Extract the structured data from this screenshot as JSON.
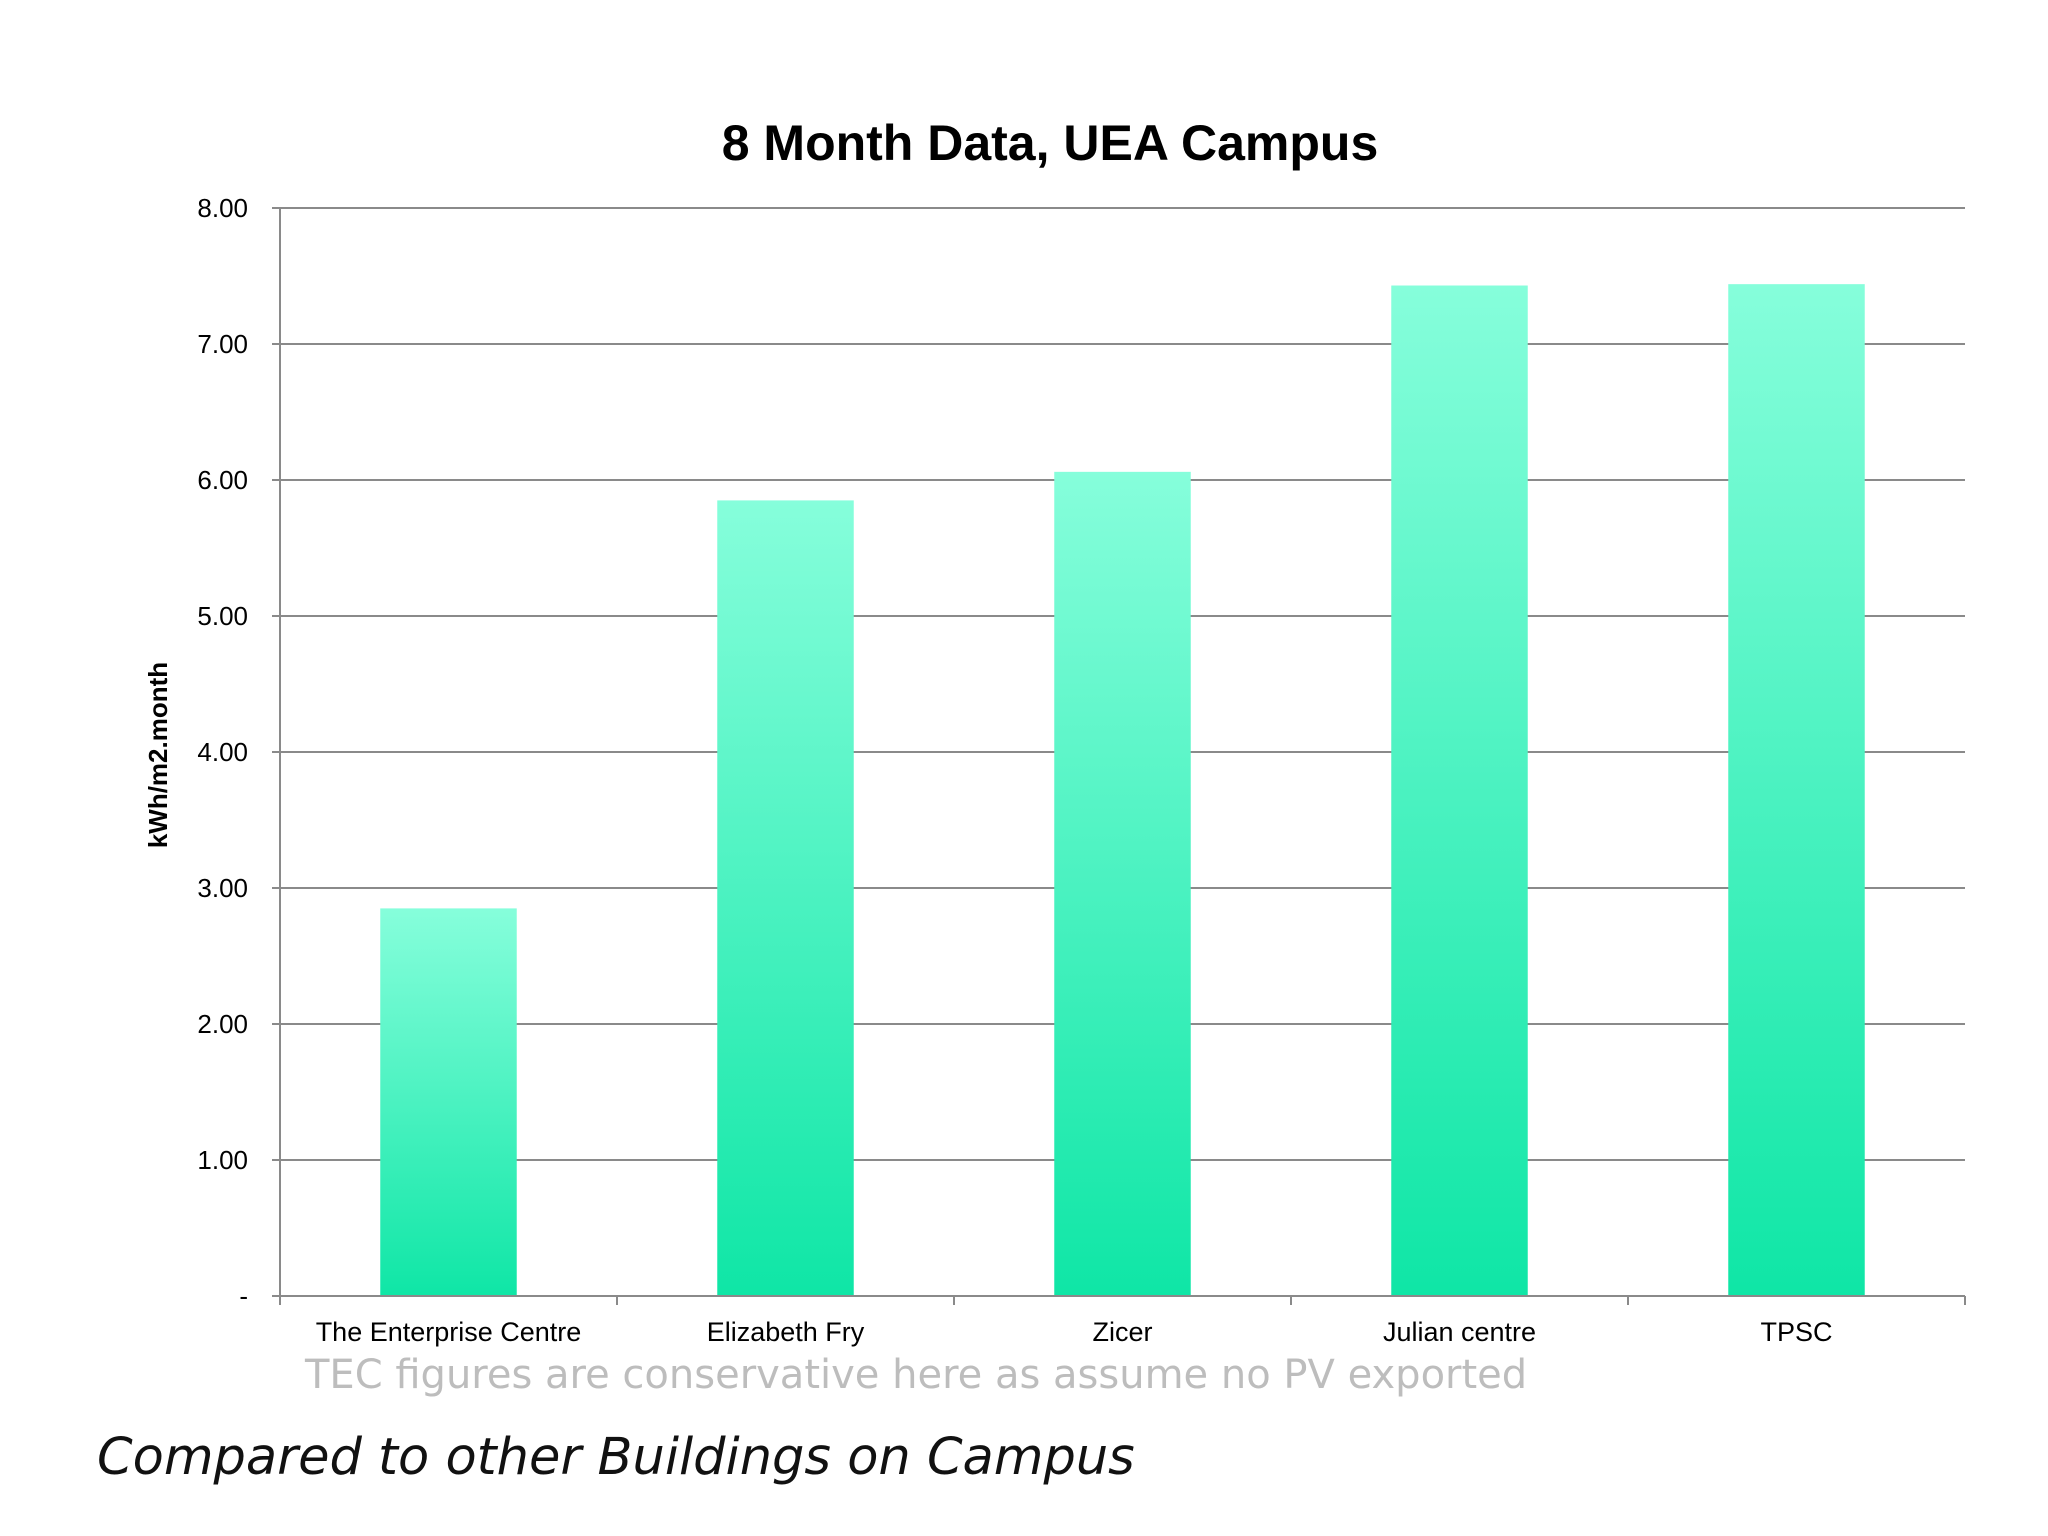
{
  "chart_data": {
    "type": "bar",
    "title": "8 Month Data, UEA Campus",
    "ylabel": "kWh/m2.month",
    "xlabel": "",
    "categories": [
      "The Enterprise Centre",
      "Elizabeth Fry",
      "Zicer",
      "Julian centre",
      "TPSC"
    ],
    "values": [
      2.85,
      5.85,
      6.06,
      7.43,
      7.44
    ],
    "ylim": [
      0,
      8
    ],
    "yticks": [
      0,
      1,
      2,
      3,
      4,
      5,
      6,
      7,
      8
    ],
    "ytick_labels": [
      "-",
      "1.00",
      "2.00",
      "3.00",
      "4.00",
      "5.00",
      "6.00",
      "7.00",
      "8.00"
    ],
    "grid": true,
    "legend": "none",
    "bar_color_top": "#86fedb",
    "bar_color_bottom": "#0fe6a6"
  },
  "note": "TEC figures are conservative here as assume no PV exported",
  "slide_caption": "Compared to other Buildings on Campus"
}
